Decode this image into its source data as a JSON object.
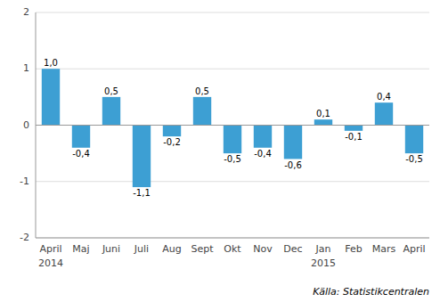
{
  "chart_data": {
    "type": "bar",
    "categories": [
      "April",
      "Maj",
      "Juni",
      "Juli",
      "Aug",
      "Sept",
      "Okt",
      "Nov",
      "Dec",
      "Jan",
      "Feb",
      "Mars",
      "April"
    ],
    "values": [
      1.0,
      -0.4,
      0.5,
      -1.1,
      -0.2,
      0.5,
      -0.5,
      -0.4,
      -0.6,
      0.1,
      -0.1,
      0.4,
      -0.5
    ],
    "value_labels": [
      "1,0",
      "-0,4",
      "0,5",
      "-1,1",
      "-0,2",
      "0,5",
      "-0,5",
      "-0,4",
      "-0,6",
      "0,1",
      "-0,1",
      "0,4",
      "-0,5"
    ],
    "data_labels": true,
    "color": "#3d9fd3",
    "ylim": [
      -2,
      2
    ],
    "yticks": [
      -2,
      -1,
      0,
      1,
      2
    ],
    "grid": true,
    "annotations": [
      {
        "text": "2014",
        "x": 0
      },
      {
        "text": "2015",
        "x": 9
      }
    ],
    "source": "Källa: Statistikcentralen"
  }
}
